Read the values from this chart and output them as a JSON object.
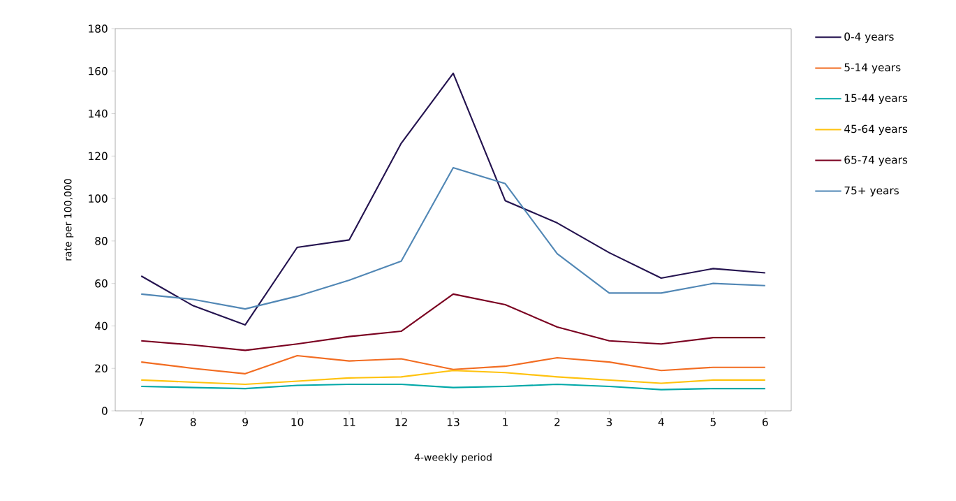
{
  "chart_data": {
    "type": "line",
    "xlabel": "4-weekly period",
    "ylabel": "rate per 100,000",
    "categories": [
      "7",
      "8",
      "9",
      "10",
      "11",
      "12",
      "13",
      "1",
      "2",
      "3",
      "4",
      "5",
      "6"
    ],
    "series": [
      {
        "name": "0-4 years",
        "color": "#24134f",
        "values": [
          63.5,
          49.5,
          40.5,
          77,
          80.5,
          126,
          159,
          99,
          88.5,
          74.5,
          62.5,
          67,
          65
        ]
      },
      {
        "name": "5-14 years",
        "color": "#f26c21",
        "values": [
          23,
          20,
          17.5,
          26,
          23.5,
          24.5,
          19.5,
          21,
          25,
          23,
          19,
          20.5,
          20.5
        ]
      },
      {
        "name": "15-44 years",
        "color": "#00a8a8",
        "values": [
          11.5,
          11,
          10.5,
          12,
          12.5,
          12.5,
          11,
          11.5,
          12.5,
          11.5,
          10,
          10.5,
          10.5
        ]
      },
      {
        "name": "45-64 years",
        "color": "#ffc20e",
        "values": [
          14.5,
          13.5,
          12.5,
          14,
          15.5,
          16,
          19,
          18,
          16,
          14.5,
          13,
          14.5,
          14.5
        ]
      },
      {
        "name": "65-74 years",
        "color": "#7a0020",
        "values": [
          33,
          31,
          28.5,
          31.5,
          35,
          37.5,
          55,
          50,
          39.5,
          33,
          31.5,
          34.5,
          34.5
        ]
      },
      {
        "name": "75+ years",
        "color": "#5187b5",
        "values": [
          55,
          52.5,
          48,
          54,
          61.5,
          70.5,
          114.5,
          107,
          74,
          55.5,
          55.5,
          60,
          59
        ]
      }
    ],
    "ylim": [
      0,
      180
    ],
    "yticks": [
      0,
      20,
      40,
      60,
      80,
      100,
      120,
      140,
      160,
      180
    ],
    "grid": false,
    "legend": "right",
    "marker": "none",
    "line_style": "solid"
  }
}
